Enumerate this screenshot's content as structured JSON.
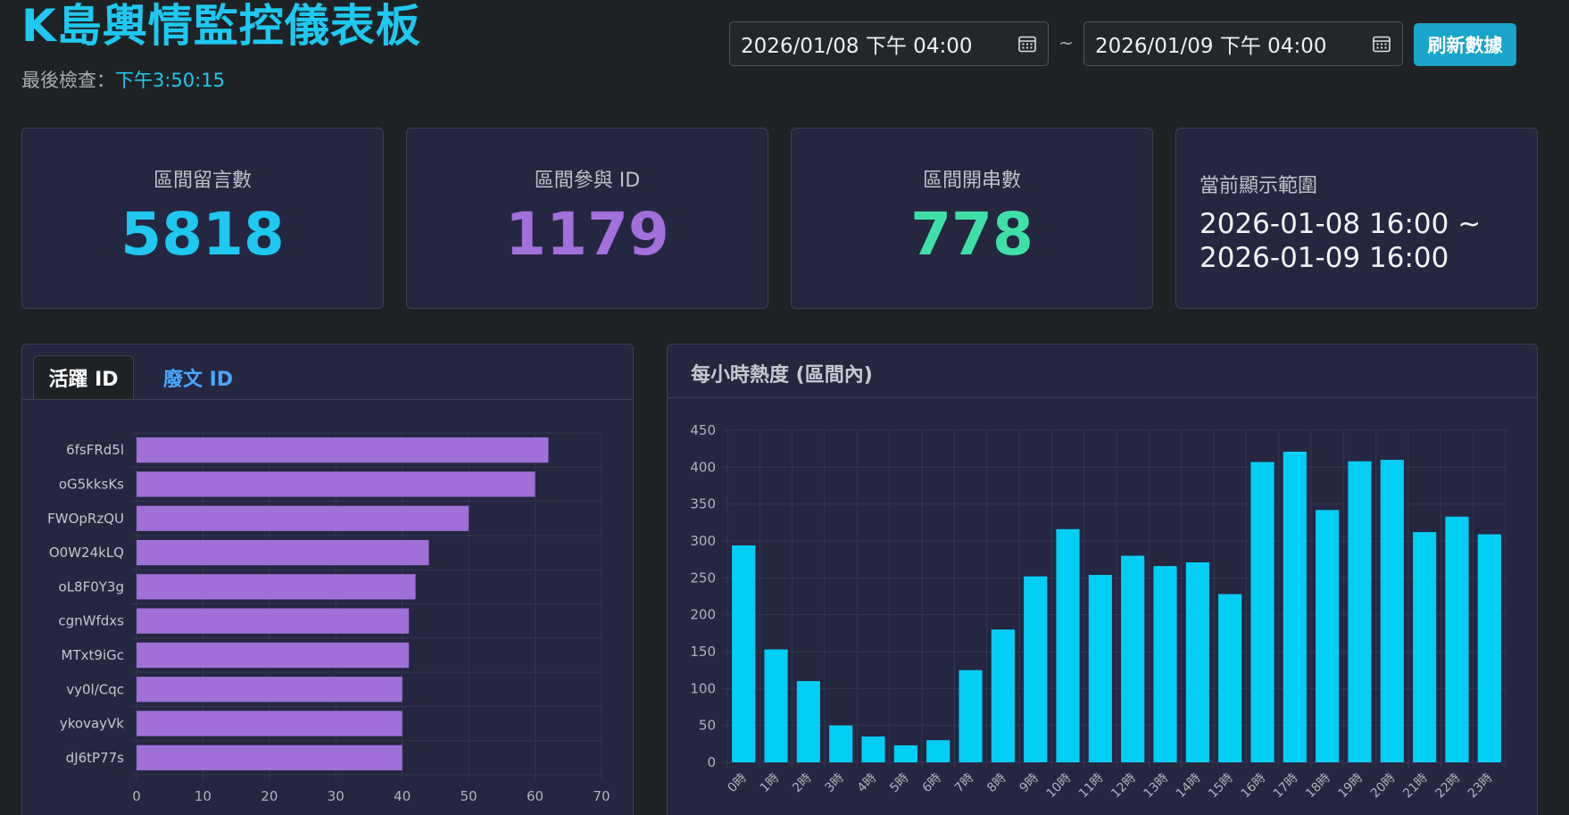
{
  "header": {
    "title": "K島輿情監控儀表板",
    "last_check_label": "最後檢查：",
    "last_check_time": "下午3:50:15"
  },
  "date_range": {
    "start": "2026/01/08 下午 04:00",
    "separator": "~",
    "end": "2026/01/09 下午 04:00",
    "refresh_label": "刷新數據"
  },
  "stats": {
    "comments_label": "區間留言數",
    "comments_value": "5818",
    "ids_label": "區間參與 ID",
    "ids_value": "1179",
    "threads_label": "區間開串數",
    "threads_value": "778",
    "range_label": "當前顯示範圍",
    "range_line1": "2026-01-08 16:00 ~",
    "range_line2": "2026-01-09 16:00"
  },
  "colors": {
    "accent": "#1ec8f0",
    "comments": "#1ec8f0",
    "ids": "#a36fdc",
    "threads": "#3fe0a8",
    "bar_purple": "#a06fd8",
    "bar_cyan": "#00cef5"
  },
  "left_panel": {
    "tabs": [
      "活躍 ID",
      "廢文 ID"
    ],
    "active_tab": "活躍 ID"
  },
  "right_panel": {
    "title": "每小時熱度 (區間內)"
  },
  "chart_data": [
    {
      "type": "bar",
      "orientation": "horizontal",
      "categories": [
        "6fsFRd5l",
        "oG5kksKs",
        "FWOpRzQU",
        "O0W24kLQ",
        "oL8F0Y3g",
        "cgnWfdxs",
        "MTxt9iGc",
        "vy0l/Cqc",
        "ykovayVk",
        "dJ6tP77s"
      ],
      "values": [
        62,
        60,
        50,
        44,
        42,
        41,
        41,
        40,
        40,
        40
      ],
      "xlim": [
        0,
        70
      ],
      "xticks": [
        0,
        10,
        20,
        30,
        40,
        50,
        60,
        70
      ],
      "grid": true,
      "color": "#a06fd8"
    },
    {
      "type": "bar",
      "categories": [
        "0時",
        "1時",
        "2時",
        "3時",
        "4時",
        "5時",
        "6時",
        "7時",
        "8時",
        "9時",
        "10時",
        "11時",
        "12時",
        "13時",
        "14時",
        "15時",
        "16時",
        "17時",
        "18時",
        "19時",
        "20時",
        "21時",
        "22時",
        "23時"
      ],
      "values": [
        294,
        153,
        110,
        50,
        35,
        23,
        30,
        125,
        180,
        252,
        316,
        254,
        280,
        266,
        271,
        228,
        407,
        421,
        342,
        408,
        410,
        312,
        333,
        309
      ],
      "ylim": [
        0,
        450
      ],
      "yticks": [
        0,
        50,
        100,
        150,
        200,
        250,
        300,
        350,
        400,
        450
      ],
      "grid": true,
      "color": "#00cef5"
    }
  ]
}
